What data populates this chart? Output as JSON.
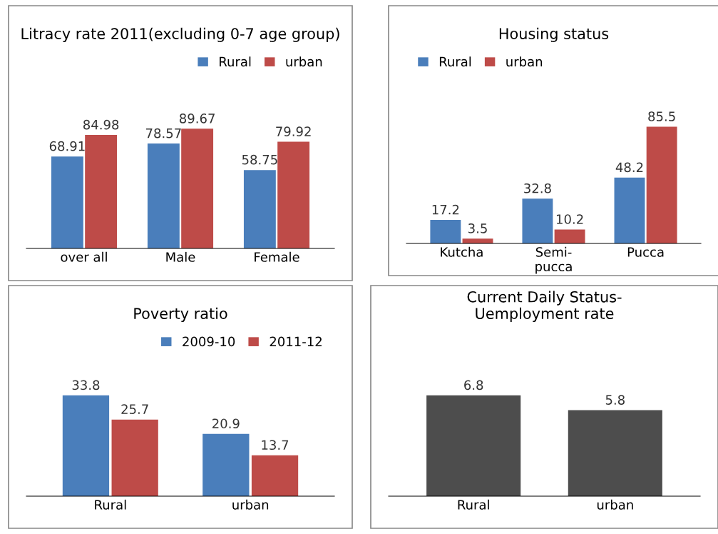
{
  "chart_data": [
    {
      "type": "bar",
      "title": "Litracy rate 2011(excluding 0-7 age group)",
      "categories": [
        "over all",
        "Male",
        "Female"
      ],
      "series": [
        {
          "name": "Rural",
          "color": "#4a7ebb",
          "values": [
            68.91,
            78.57,
            58.75
          ]
        },
        {
          "name": "urban",
          "color": "#be4b48",
          "values": [
            84.98,
            89.67,
            79.92
          ]
        }
      ],
      "data_labels": true,
      "legend": "top right",
      "grid": false
    },
    {
      "type": "bar",
      "title": "Housing status",
      "categories": [
        "Kutcha",
        "Semi-\npucca",
        "Pucca"
      ],
      "series": [
        {
          "name": "Rural",
          "color": "#4a7ebb",
          "values": [
            17.2,
            32.8,
            48.2
          ]
        },
        {
          "name": "urban",
          "color": "#be4b48",
          "values": [
            3.5,
            10.2,
            85.5
          ]
        }
      ],
      "data_labels": true,
      "legend": "top left",
      "grid": false
    },
    {
      "type": "bar",
      "title": "Poverty ratio",
      "categories": [
        "Rural",
        "urban"
      ],
      "series": [
        {
          "name": "2009-10",
          "color": "#4a7ebb",
          "values": [
            33.8,
            20.9
          ]
        },
        {
          "name": "2011-12",
          "color": "#be4b48",
          "values": [
            25.7,
            13.7
          ]
        }
      ],
      "data_labels": true,
      "legend": "top right",
      "grid": false
    },
    {
      "type": "bar",
      "title": "Current Daily Status-\nUemployment rate",
      "categories": [
        "Rural",
        "urban"
      ],
      "series": [
        {
          "color": "#4d4d4d",
          "values": [
            6.8,
            5.8
          ]
        }
      ],
      "data_labels": true,
      "grid": false
    }
  ]
}
